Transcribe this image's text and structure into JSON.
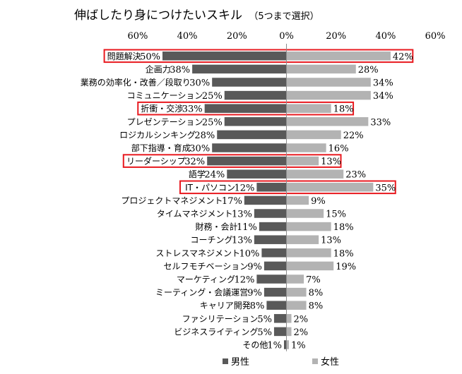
{
  "chart_data": {
    "type": "bar",
    "orientation": "horizontal-butterfly",
    "title": "伸ばしたり身につけたいスキル",
    "subtitle": "（5つまで選択）",
    "categories": [
      "問題解決",
      "企画力",
      "業務の効率化・改善／段取り",
      "コミュニケーション",
      "折衝・交渉",
      "プレゼンテーション",
      "ロジカルシンキング",
      "部下指導・育成",
      "リーダーシップ",
      "語学",
      "IT・パソコン",
      "プロジェクトマネジメント",
      "タイムマネジメント",
      "財務・会計",
      "コーチング",
      "ストレスマネジメント",
      "セルフモチベーション",
      "マーケティング",
      "ミーティング・会議運営",
      "キャリア開発",
      "ファシリテーション",
      "ビジネスライティング",
      "その他"
    ],
    "series": [
      {
        "name": "男性",
        "color": "#595959",
        "values": [
          50,
          38,
          30,
          25,
          33,
          25,
          28,
          30,
          32,
          24,
          12,
          17,
          13,
          11,
          13,
          10,
          9,
          12,
          9,
          8,
          5,
          5,
          1
        ],
        "labels": [
          "50%",
          "38%",
          "30%",
          "25%",
          "33%",
          "25%",
          "28%",
          "30%",
          "32%",
          "24%",
          "12%",
          "17%",
          "13%",
          "11%",
          "13%",
          "10%",
          "9%",
          "12%",
          "9%",
          "8%",
          "5%",
          "5%",
          "1%"
        ]
      },
      {
        "name": "女性",
        "color": "#b3b3b3",
        "values": [
          42,
          28,
          34,
          34,
          18,
          33,
          22,
          16,
          13,
          23,
          35,
          9,
          15,
          18,
          13,
          18,
          19,
          7,
          8,
          8,
          2,
          2,
          1
        ],
        "labels": [
          "42%",
          "28%",
          "34%",
          "34%",
          "18%",
          "33%",
          "22%",
          "16%",
          "13%",
          "23%",
          "35%",
          "9%",
          "15%",
          "18%",
          "13%",
          "18%",
          "19%",
          "7%",
          "8%",
          "8%",
          "2%",
          "2%",
          "1%"
        ]
      }
    ],
    "axis_ticks": [
      "60%",
      "40%",
      "20%",
      "0%",
      "20%",
      "40%",
      "60%"
    ],
    "xlim": [
      -60,
      60
    ],
    "axis_position": "top",
    "grid": false,
    "legend_position": "bottom",
    "highlighted_categories": [
      "問題解決",
      "折衝・交渉",
      "リーダーシップ",
      "IT・パソコン"
    ],
    "highlight_color": "#e8191f"
  }
}
